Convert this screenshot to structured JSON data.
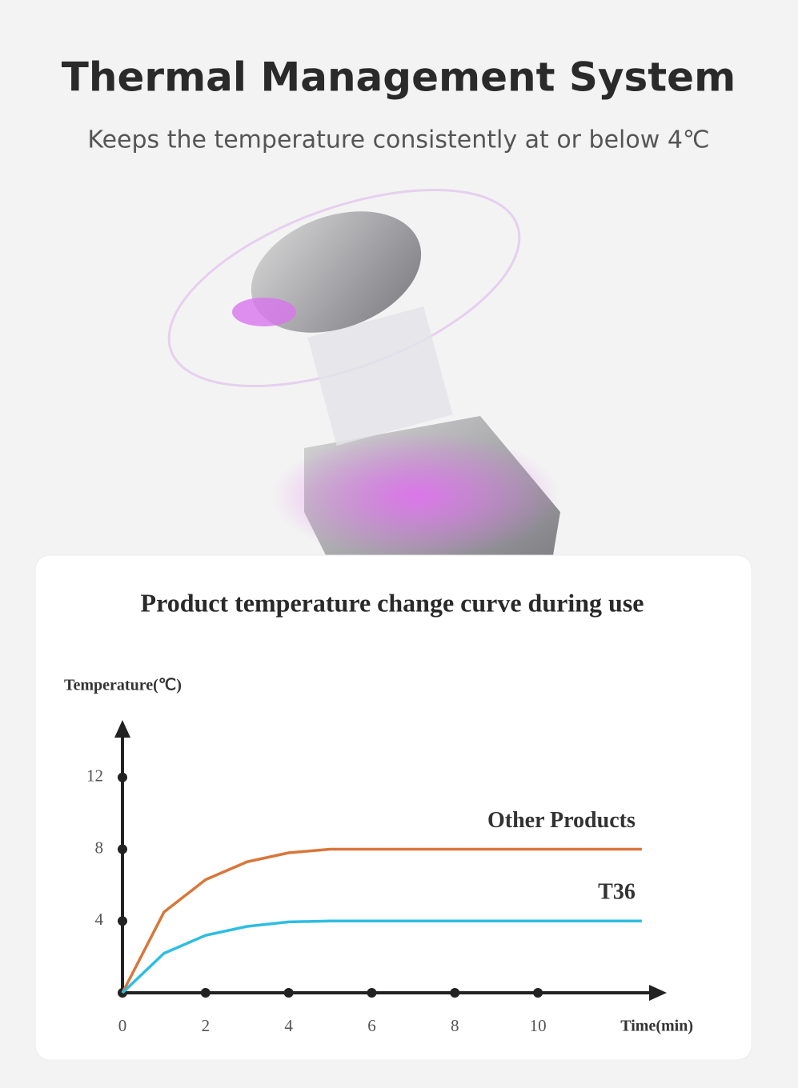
{
  "header": {
    "title": "Thermal Management System",
    "subtitle": "Keeps the temperature consistently at or below 4℃"
  },
  "chart_data": {
    "type": "line",
    "title": "Product temperature change curve during use",
    "y_label": "Temperature(℃)",
    "x_label": "Time(min)",
    "x": [
      0,
      1,
      2,
      3,
      4,
      5,
      6,
      8,
      10,
      12.5
    ],
    "series": [
      {
        "name": "Other Products",
        "color": "#d9763a",
        "values": [
          0,
          4.5,
          6.3,
          7.3,
          7.8,
          8,
          8,
          8,
          8,
          8
        ]
      },
      {
        "name": "T36",
        "color": "#2dbde2",
        "values": [
          0,
          2.2,
          3.2,
          3.7,
          3.95,
          4,
          4,
          4,
          4,
          4
        ]
      }
    ],
    "xlim": [
      0,
      13.1
    ],
    "ylim": [
      0,
      15.2
    ],
    "xticks": [
      0,
      2,
      4,
      6,
      8,
      10
    ],
    "yticks": [
      4,
      8,
      12
    ]
  }
}
